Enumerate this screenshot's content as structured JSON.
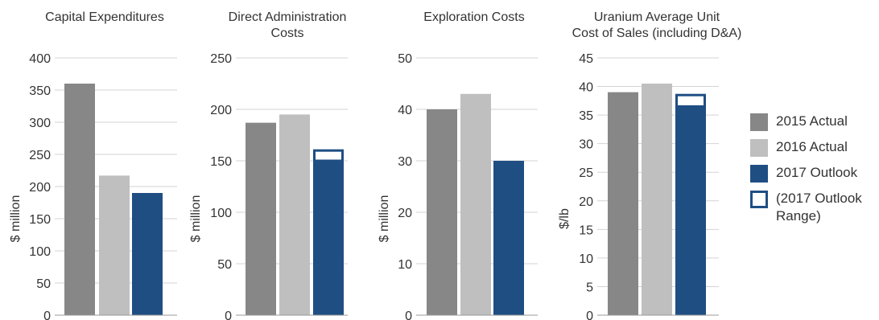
{
  "colors": {
    "actual_2015": "#878787",
    "actual_2016": "#bfbfbf",
    "outlook_2017": "#1f4e83",
    "grid": "#d3d3d3",
    "axis": "#999999"
  },
  "legend": {
    "items": [
      {
        "label": "2015 Actual",
        "color": "#878787",
        "style": "fill"
      },
      {
        "label": "2016 Actual",
        "color": "#bfbfbf",
        "style": "fill"
      },
      {
        "label": "2017 Outlook",
        "color": "#1f4e83",
        "style": "fill"
      },
      {
        "label": "(2017 Outlook Range)",
        "color": "#1f4e83",
        "style": "outline"
      }
    ]
  },
  "chart_data": [
    {
      "type": "bar",
      "title": [
        "Capital Expenditures"
      ],
      "ylabel": "$ million",
      "ylim": [
        0,
        400
      ],
      "yticks": [
        0,
        50,
        100,
        150,
        200,
        250,
        300,
        350,
        400
      ],
      "categories": [
        "2015 Actual",
        "2016 Actual",
        "2017 Outlook"
      ],
      "values": [
        360,
        217,
        190
      ],
      "outlook_range": null,
      "grid": true
    },
    {
      "type": "bar",
      "title": [
        "Direct Administration",
        "Costs"
      ],
      "ylabel": "$ million",
      "ylim": [
        0,
        250
      ],
      "yticks": [
        0,
        50,
        100,
        150,
        200,
        250
      ],
      "categories": [
        "2015 Actual",
        "2016 Actual",
        "2017 Outlook"
      ],
      "values": [
        187,
        195,
        150
      ],
      "outlook_range": [
        150,
        160
      ],
      "grid": true
    },
    {
      "type": "bar",
      "title": [
        "Exploration Costs"
      ],
      "ylabel": "$ million",
      "ylim": [
        0,
        50
      ],
      "yticks": [
        0,
        10,
        20,
        30,
        40,
        50
      ],
      "categories": [
        "2015 Actual",
        "2016 Actual",
        "2017 Outlook"
      ],
      "values": [
        40,
        43,
        30
      ],
      "outlook_range": null,
      "grid": true
    },
    {
      "type": "bar",
      "title": [
        "Uranium Average Unit",
        "Cost of Sales (including D&A)"
      ],
      "ylabel": "$/lb",
      "ylim": [
        0,
        45
      ],
      "yticks": [
        0,
        5,
        10,
        15,
        20,
        25,
        30,
        35,
        40,
        45
      ],
      "categories": [
        "2015 Actual",
        "2016 Actual",
        "2017 Outlook"
      ],
      "values": [
        39,
        40.5,
        36.5
      ],
      "outlook_range": [
        36.5,
        38.5
      ],
      "grid": true
    }
  ]
}
